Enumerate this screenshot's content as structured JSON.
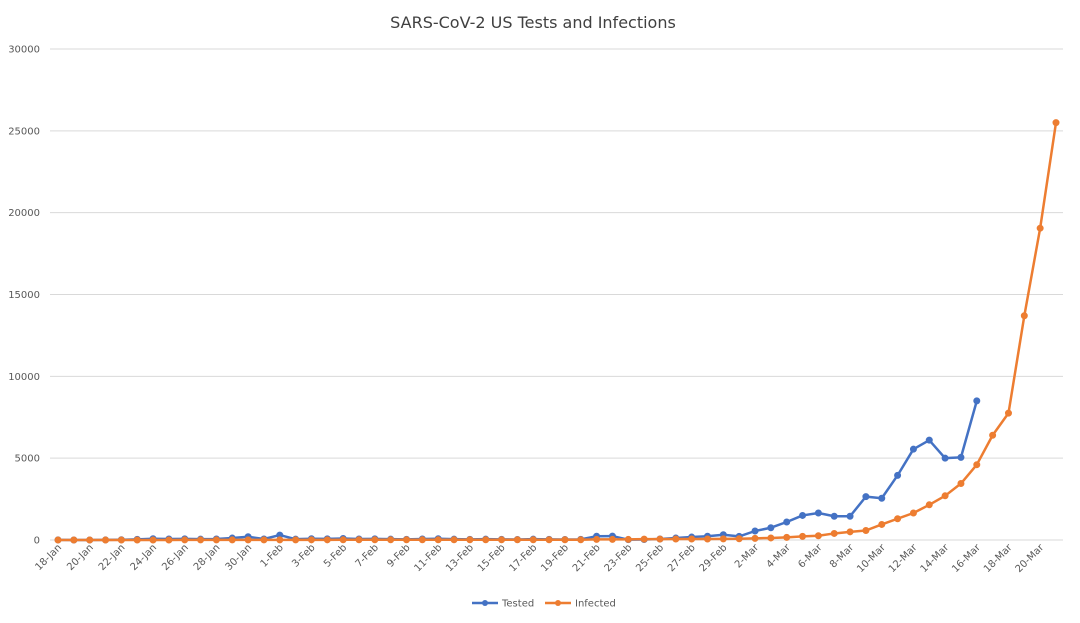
{
  "chart_data": {
    "type": "line",
    "title": "SARS-CoV-2 US Tests and Infections",
    "xlabel": "",
    "ylabel": "",
    "ylim": [
      0,
      30000
    ],
    "yticks": [
      0,
      5000,
      10000,
      15000,
      20000,
      25000,
      30000
    ],
    "grid": true,
    "legend_position": "bottom",
    "categories": [
      "18-Jan",
      "19-Jan",
      "20-Jan",
      "21-Jan",
      "22-Jan",
      "23-Jan",
      "24-Jan",
      "25-Jan",
      "26-Jan",
      "27-Jan",
      "28-Jan",
      "29-Jan",
      "30-Jan",
      "31-Jan",
      "1-Feb",
      "2-Feb",
      "3-Feb",
      "4-Feb",
      "5-Feb",
      "6-Feb",
      "7-Feb",
      "8-Feb",
      "9-Feb",
      "10-Feb",
      "11-Feb",
      "12-Feb",
      "13-Feb",
      "14-Feb",
      "15-Feb",
      "16-Feb",
      "17-Feb",
      "18-Feb",
      "19-Feb",
      "20-Feb",
      "21-Feb",
      "22-Feb",
      "23-Feb",
      "24-Feb",
      "25-Feb",
      "26-Feb",
      "27-Feb",
      "28-Feb",
      "29-Feb",
      "1-Mar",
      "2-Mar",
      "3-Mar",
      "4-Mar",
      "5-Mar",
      "6-Mar",
      "7-Mar",
      "8-Mar",
      "9-Mar",
      "10-Mar",
      "11-Mar",
      "12-Mar",
      "13-Mar",
      "14-Mar",
      "15-Mar",
      "16-Mar",
      "17-Mar",
      "18-Mar",
      "19-Mar",
      "20-Mar",
      "21-Mar"
    ],
    "tick_labels": [
      "18-Jan",
      "20-Jan",
      "22-Jan",
      "24-Jan",
      "26-Jan",
      "28-Jan",
      "30-Jan",
      "1-Feb",
      "3-Feb",
      "5-Feb",
      "7-Feb",
      "9-Feb",
      "11-Feb",
      "13-Feb",
      "15-Feb",
      "17-Feb",
      "19-Feb",
      "21-Feb",
      "23-Feb",
      "25-Feb",
      "27-Feb",
      "29-Feb",
      "2-Mar",
      "4-Mar",
      "6-Mar",
      "8-Mar",
      "10-Mar",
      "12-Mar",
      "14-Mar",
      "16-Mar",
      "18-Mar",
      "20-Mar"
    ],
    "series": [
      {
        "name": "Tested",
        "color": "#4472c4",
        "values": [
          4,
          2,
          3,
          5,
          15,
          40,
          80,
          60,
          70,
          50,
          60,
          120,
          200,
          60,
          300,
          50,
          80,
          70,
          90,
          60,
          70,
          50,
          40,
          60,
          80,
          50,
          40,
          50,
          40,
          30,
          50,
          40,
          30,
          40,
          230,
          240,
          20,
          30,
          60,
          120,
          180,
          230,
          320,
          220,
          550,
          750,
          1100,
          1500,
          1650,
          1450,
          1450,
          2650,
          2550,
          3950,
          5550,
          6100,
          5000,
          5050,
          8500,
          null,
          null,
          null,
          null,
          null
        ]
      },
      {
        "name": "Infected",
        "color": "#ed7d31",
        "values": [
          0,
          0,
          0,
          0,
          1,
          1,
          2,
          2,
          5,
          5,
          5,
          5,
          6,
          7,
          8,
          8,
          11,
          11,
          12,
          12,
          12,
          12,
          12,
          12,
          13,
          13,
          14,
          15,
          15,
          15,
          15,
          15,
          15,
          15,
          35,
          35,
          35,
          53,
          57,
          60,
          60,
          63,
          68,
          75,
          100,
          125,
          160,
          220,
          260,
          400,
          500,
          580,
          950,
          1300,
          1650,
          2150,
          2700,
          3450,
          4600,
          6400,
          7750,
          13700,
          19050,
          25500
        ]
      }
    ]
  }
}
